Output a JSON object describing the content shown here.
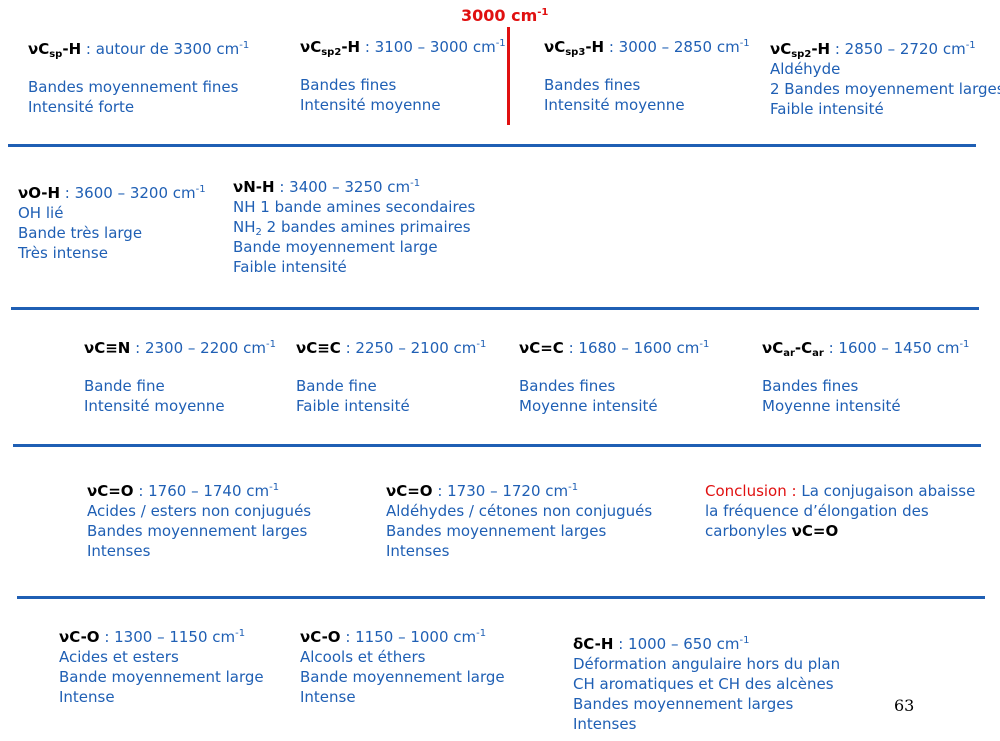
{
  "marker": {
    "text": "3000 cm",
    "sup": "-1"
  },
  "page_number": "63",
  "colors": {
    "text_blue": "#1f5fb4",
    "accent_red": "#e01010",
    "label_black": "#000000"
  },
  "b1": {
    "label": "νC",
    "sub": "sp",
    "label2": "-H",
    "range": " : autour de 3300 cm",
    "sup": "-1",
    "l1": "Bandes moyennement fines",
    "l2": "Intensité forte"
  },
  "b2": {
    "label": "νC",
    "sub": "sp2",
    "label2": "-H",
    "range": " : 3100 – 3000 cm",
    "sup": "-1",
    "l1": "Bandes fines",
    "l2": "Intensité moyenne"
  },
  "b3": {
    "label": "νC",
    "sub": "sp3",
    "label2": "-H",
    "range": " : 3000 – 2850 cm",
    "sup": "-1",
    "l1": "Bandes fines",
    "l2": "Intensité moyenne"
  },
  "b4": {
    "label": "νC",
    "sub": "sp2",
    "label2": "-H",
    "range": " : 2850 – 2720 cm",
    "sup": "-1",
    "l1": "Aldéhyde",
    "l2": "2 Bandes moyennement larges",
    "l3": "Faible intensité"
  },
  "b5": {
    "label": "νO-H",
    "range": " : 3600 – 3200 cm",
    "sup": "-1",
    "l1": "OH lié",
    "l2": "Bande très large",
    "l3": "Très intense"
  },
  "b6": {
    "label": "νN-H",
    "range": " : 3400 – 3250 cm",
    "sup": "-1",
    "l1": "NH 1 bande amines secondaires",
    "l2a": "NH",
    "l2sub": "2",
    "l2b": " 2 bandes amines primaires",
    "l3": "Bande moyennement large",
    "l4": "Faible intensité"
  },
  "b7": {
    "label": "νC≡N",
    "range": " : 2300 – 2200 cm",
    "sup": "-1",
    "l1": "Bande fine",
    "l2": "Intensité moyenne"
  },
  "b8": {
    "label": "νC≡C",
    "range": " : 2250 – 2100 cm",
    "sup": "-1",
    "l1": "Bande fine",
    "l2": "Faible intensité"
  },
  "b9": {
    "label": "νC=C",
    "range": " : 1680 – 1600 cm",
    "sup": "-1",
    "l1": "Bandes fines",
    "l2": "Moyenne intensité"
  },
  "b10": {
    "label": "νC",
    "sub": "ar",
    "label2": "-C",
    "sub2": "ar",
    "range": " : 1600 – 1450 cm",
    "sup": "-1",
    "l1": "Bandes fines",
    "l2": "Moyenne intensité"
  },
  "b11": {
    "label": "νC=O",
    "range": " : 1760 – 1740 cm",
    "sup": "-1",
    "l1": "Acides / esters non conjugués",
    "l2": "Bandes moyennement larges",
    "l3": "Intenses"
  },
  "b12": {
    "label": "νC=O",
    "range": " : 1730 – 1720 cm",
    "sup": "-1",
    "l1": "Aldéhydes / cétones non conjugués",
    "l2": "Bandes moyennement larges",
    "l3": "Intenses"
  },
  "b13": {
    "label": "Conclusion :",
    "t1": " La conjugaison abaisse",
    "l2": "la fréquence d’élongation des",
    "l3": "carbonyles ",
    "l3b": "νC=O"
  },
  "b14": {
    "label": "νC-O",
    "range": " : 1300 – 1150 cm",
    "sup": "-1",
    "l1": "Acides et esters",
    "l2": "Bande moyennement large",
    "l3": "Intense"
  },
  "b15": {
    "label": "νC-O",
    "range": " : 1150 – 1000 cm",
    "sup": "-1",
    "l1": "Alcools et éthers",
    "l2": "Bande moyennement large",
    "l3": "Intense"
  },
  "b16": {
    "label": "δC-H",
    "range": " : 1000 – 650 cm",
    "sup": "-1",
    "l1": "Déformation angulaire hors du plan",
    "l2": "CH aromatiques et CH des alcènes",
    "l3": "Bandes moyennement larges",
    "l4": "Intenses"
  }
}
